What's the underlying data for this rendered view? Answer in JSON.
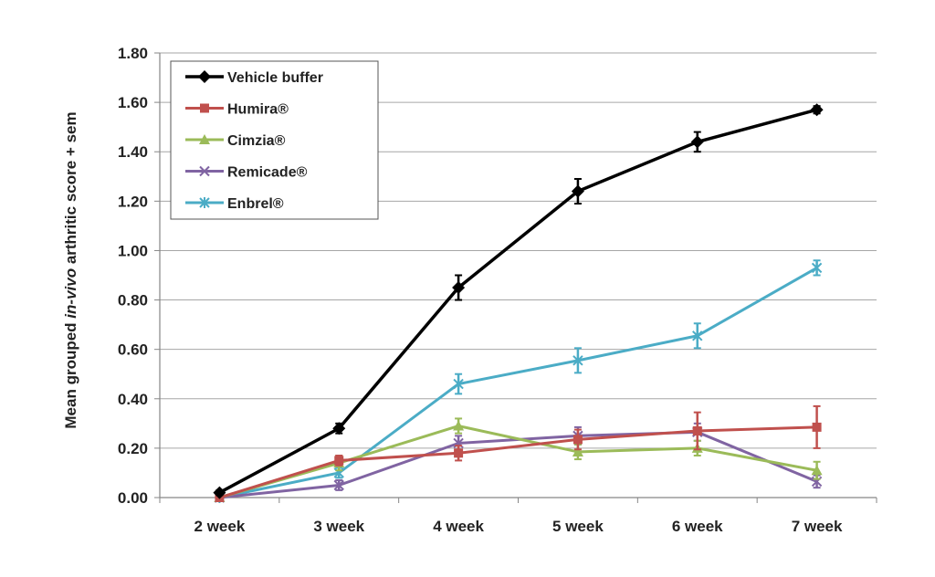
{
  "chart_data": {
    "type": "line",
    "title": "",
    "xlabel": "",
    "ylabel": {
      "prefix": "Mean grouped ",
      "italic": "in-vivo",
      "suffix": " arthritic score + sem"
    },
    "ylim": [
      0,
      1.8
    ],
    "yticks": [
      "0.00",
      "0.20",
      "0.40",
      "0.60",
      "0.80",
      "1.00",
      "1.20",
      "1.40",
      "1.60",
      "1.80"
    ],
    "grid": true,
    "legend_position": "top-left",
    "categories": [
      "2 week",
      "3 week",
      "4 week",
      "5 week",
      "6 week",
      "7 week"
    ],
    "series": [
      {
        "name": "Vehicle buffer",
        "color": "#000000",
        "marker": "diamond",
        "values": [
          0.02,
          0.28,
          0.85,
          1.24,
          1.44,
          1.57
        ],
        "errors": [
          0.01,
          0.02,
          0.05,
          0.05,
          0.04,
          0.015
        ]
      },
      {
        "name": "Humira®",
        "color": "#c0504d",
        "marker": "square",
        "values": [
          0.0,
          0.15,
          0.18,
          0.235,
          0.27,
          0.285
        ],
        "errors": [
          0.005,
          0.02,
          0.03,
          0.04,
          0.075,
          0.085
        ]
      },
      {
        "name": "Cimzia®",
        "color": "#9bbb59",
        "marker": "triangle",
        "values": [
          0.0,
          0.14,
          0.29,
          0.185,
          0.2,
          0.11
        ],
        "errors": [
          0.005,
          0.03,
          0.03,
          0.03,
          0.03,
          0.035
        ]
      },
      {
        "name": "Remicade®",
        "color": "#8064a2",
        "marker": "x",
        "values": [
          0.0,
          0.05,
          0.22,
          0.25,
          0.265,
          0.065
        ],
        "errors": [
          0.005,
          0.02,
          0.03,
          0.035,
          0.035,
          0.025
        ]
      },
      {
        "name": "Enbrel®",
        "color": "#4bacc6",
        "marker": "star",
        "values": [
          0.0,
          0.1,
          0.46,
          0.555,
          0.655,
          0.93
        ],
        "errors": [
          0.005,
          0.02,
          0.04,
          0.05,
          0.05,
          0.03
        ]
      }
    ]
  }
}
